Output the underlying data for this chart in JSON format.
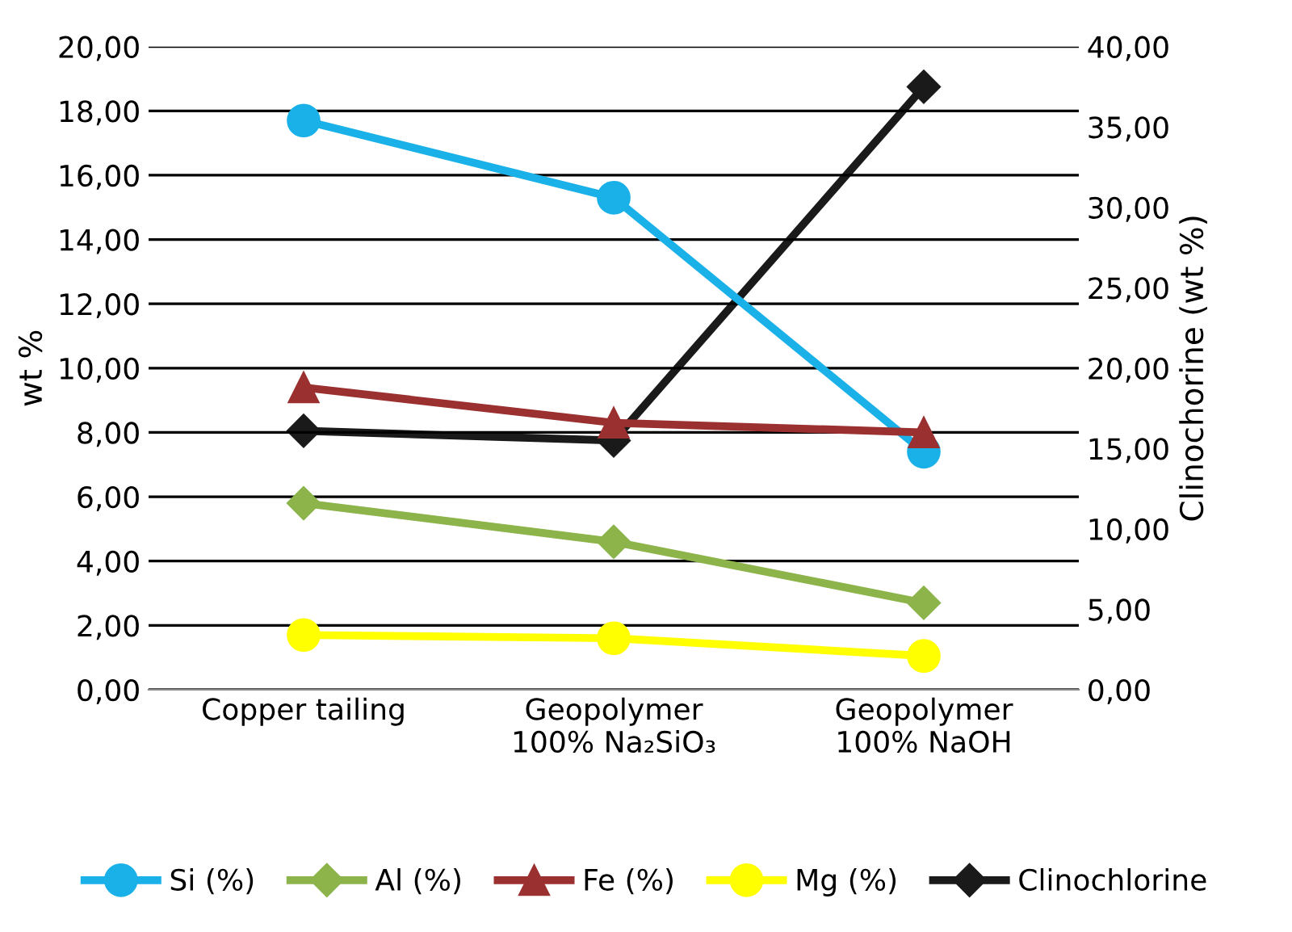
{
  "chart_data": {
    "type": "line",
    "categories": [
      "Copper tailing",
      "Geopolymer\n100% Na₂SiO₃",
      "Geopolymer\n100% NaOH"
    ],
    "ylabel": "wt %",
    "y2label": "Clinochorine (wt %)",
    "ylim": [
      0,
      20
    ],
    "yticks": [
      {
        "value": 0,
        "label": "0,00"
      },
      {
        "value": 2,
        "label": "2,00"
      },
      {
        "value": 4,
        "label": "4,00"
      },
      {
        "value": 6,
        "label": "6,00"
      },
      {
        "value": 8,
        "label": "8,00"
      },
      {
        "value": 10,
        "label": "10,00"
      },
      {
        "value": 12,
        "label": "12,00"
      },
      {
        "value": 14,
        "label": "14,00"
      },
      {
        "value": 16,
        "label": "16,00"
      },
      {
        "value": 18,
        "label": "18,00"
      },
      {
        "value": 20,
        "label": "20,00"
      }
    ],
    "y2lim": [
      0,
      40
    ],
    "y2ticks": [
      {
        "value": 0,
        "label": "0,00"
      },
      {
        "value": 5,
        "label": "5,00"
      },
      {
        "value": 10,
        "label": "10,00"
      },
      {
        "value": 15,
        "label": "15,00"
      },
      {
        "value": 20,
        "label": "20,00"
      },
      {
        "value": 25,
        "label": "25,00"
      },
      {
        "value": 30,
        "label": "30,00"
      },
      {
        "value": 35,
        "label": "35,00"
      },
      {
        "value": 40,
        "label": "40,00"
      }
    ],
    "grid": "y",
    "legend": "bottom",
    "line_style": "solid",
    "series": [
      {
        "name": "Si (%)",
        "color": "#1ab0e8",
        "marker": "circle",
        "values": [
          17.7,
          15.3,
          7.4
        ]
      },
      {
        "name": "Al (%)",
        "color": "#8db44a",
        "marker": "diamond",
        "values": [
          5.8,
          4.6,
          2.7
        ]
      },
      {
        "name": "Fe (%)",
        "color": "#9b3030",
        "marker": "triangle",
        "values": [
          9.4,
          8.3,
          8.0
        ]
      },
      {
        "name": "Mg (%)",
        "color": "#ffff00",
        "marker": "circle",
        "values": [
          1.7,
          1.6,
          1.05
        ]
      },
      {
        "name": "Clinochlorine",
        "color": "#1a1a1a",
        "marker": "diamond",
        "axis": "y2",
        "values": [
          16.1,
          15.5,
          37.5
        ]
      }
    ]
  }
}
